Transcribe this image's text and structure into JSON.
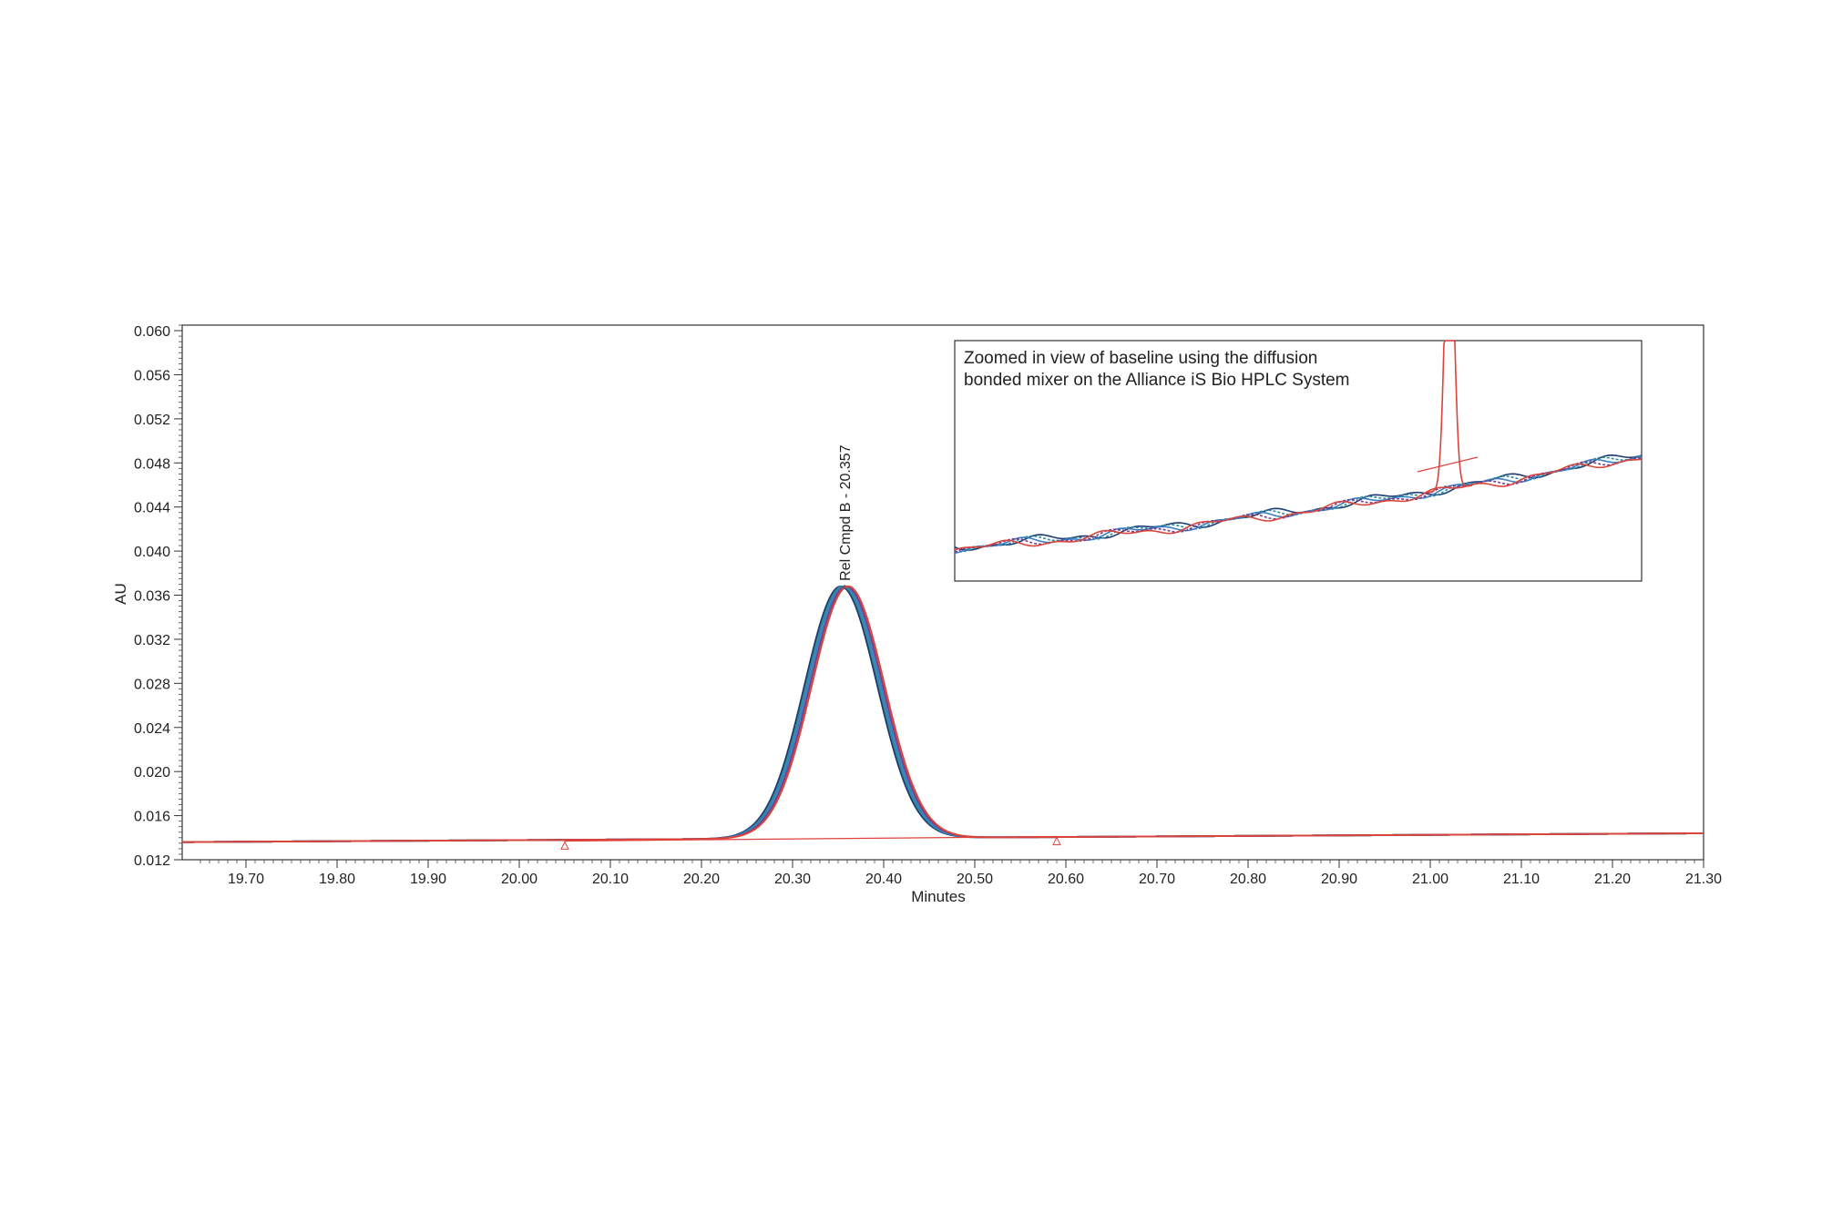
{
  "chart_data": {
    "type": "line",
    "xlabel": "Minutes",
    "ylabel": "AU",
    "xlim": [
      19.63,
      21.3
    ],
    "ylim": [
      0.012,
      0.0605
    ],
    "x_ticks": [
      19.7,
      19.8,
      19.9,
      20.0,
      20.1,
      20.2,
      20.3,
      20.4,
      20.5,
      20.6,
      20.7,
      20.8,
      20.9,
      21.0,
      21.1,
      21.2,
      21.3
    ],
    "x_tick_labels": [
      "19.70",
      "19.80",
      "19.90",
      "20.00",
      "20.10",
      "20.20",
      "20.30",
      "20.40",
      "20.50",
      "20.60",
      "20.70",
      "20.80",
      "20.90",
      "21.00",
      "21.10",
      "21.20",
      "21.30"
    ],
    "y_ticks": [
      0.012,
      0.016,
      0.02,
      0.024,
      0.028,
      0.032,
      0.036,
      0.04,
      0.044,
      0.048,
      0.052,
      0.056,
      0.06
    ],
    "y_tick_labels": [
      "0.012",
      "0.016",
      "0.020",
      "0.024",
      "0.028",
      "0.032",
      "0.036",
      "0.040",
      "0.044",
      "0.048",
      "0.052",
      "0.056",
      "0.060"
    ],
    "peak": {
      "label": "Rel Cmpd B - 20.357",
      "retention_time": 20.357,
      "apex_au": 0.0368,
      "sigma_min": 0.04,
      "baseline_start": {
        "x": 20.05,
        "y": 0.0137
      },
      "baseline_end": {
        "x": 20.59,
        "y": 0.0141
      }
    },
    "baseline": {
      "start": {
        "x": 19.63,
        "y": 0.0136
      },
      "end": {
        "x": 21.3,
        "y": 0.0144
      }
    },
    "series": [
      {
        "color": "#1f3b73",
        "rt_shift": -0.004
      },
      {
        "color": "#2e8b9a",
        "rt_shift": -0.002
      },
      {
        "color": "#3a7fc2",
        "rt_shift": 0.0
      },
      {
        "color": "#7a3e8a",
        "rt_shift": 0.002
      },
      {
        "color": "#d9443b",
        "rt_shift": 0.004
      }
    ],
    "integration_color": "#e0403a",
    "inset": {
      "text_line1": "Zoomed  in view  of baseline  using  the diffusion",
      "text_line2": "bonded  mixer on the Alliance iS Bio HPLC System"
    }
  }
}
